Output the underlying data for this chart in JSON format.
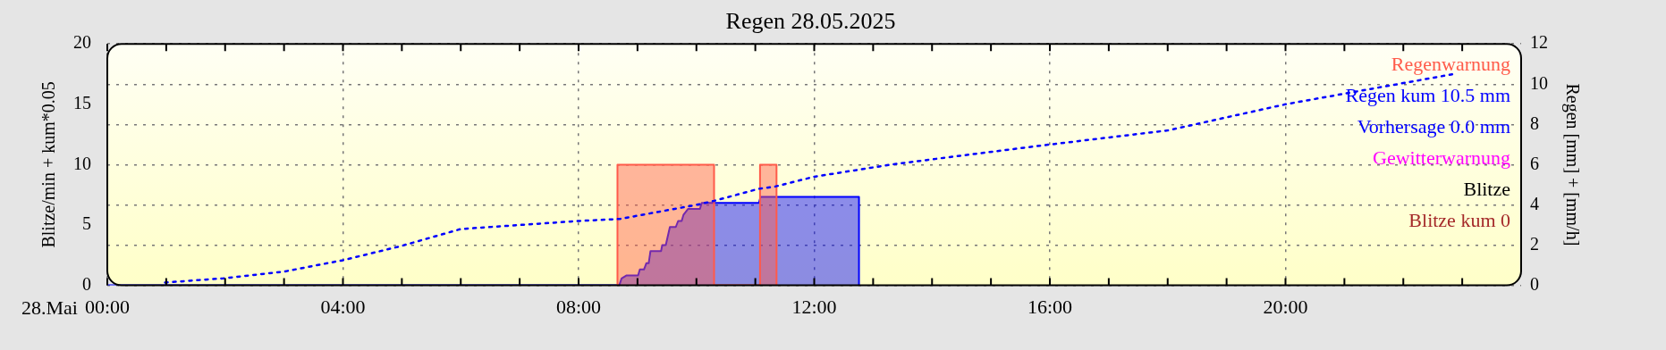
{
  "chart_data": {
    "type": "line",
    "title": "Regen 28.05.2025",
    "ylabel": "Blitze/min + kum*0.05",
    "y2label": "Regen [mm] + [mm/h]",
    "annotations": [
      "28.Mai"
    ],
    "xlim": [
      0,
      24
    ],
    "xticks": [
      {
        "value": 0,
        "label": "00:00"
      },
      {
        "value": 1,
        "label": null
      },
      {
        "value": 2,
        "label": null
      },
      {
        "value": 3,
        "label": null
      },
      {
        "value": 4,
        "label": "04:00"
      },
      {
        "value": 5,
        "label": null
      },
      {
        "value": 6,
        "label": null
      },
      {
        "value": 7,
        "label": null
      },
      {
        "value": 8,
        "label": "08:00"
      },
      {
        "value": 9,
        "label": null
      },
      {
        "value": 10,
        "label": null
      },
      {
        "value": 11,
        "label": null
      },
      {
        "value": 12,
        "label": "12:00"
      },
      {
        "value": 13,
        "label": null
      },
      {
        "value": 14,
        "label": null
      },
      {
        "value": 15,
        "label": null
      },
      {
        "value": 16,
        "label": "16:00"
      },
      {
        "value": 17,
        "label": null
      },
      {
        "value": 18,
        "label": null
      },
      {
        "value": 19,
        "label": null
      },
      {
        "value": 20,
        "label": "20:00"
      },
      {
        "value": 21,
        "label": null
      },
      {
        "value": 22,
        "label": null
      },
      {
        "value": 23,
        "label": null
      }
    ],
    "ylim": [
      0,
      20
    ],
    "yticks": [
      0,
      5,
      10,
      15,
      20
    ],
    "y2lim": [
      0,
      12
    ],
    "y2ticks": [
      0,
      2,
      4,
      6,
      8,
      10,
      12
    ],
    "grid": true,
    "legend": "top right",
    "marker": "none",
    "series": [
      {
        "name": "Regenwarnung",
        "type": "area",
        "axis": "y2",
        "color": "#ff5a4a",
        "x": [
          8.66,
          8.66,
          10.3,
          10.3,
          11.08,
          11.08,
          11.36,
          11.36
        ],
        "values": [
          0,
          6,
          6,
          0,
          0,
          6,
          6,
          0
        ]
      },
      {
        "type": "area",
        "axis": "y2",
        "color": "#0000ff",
        "x": [
          0,
          8.69,
          8.73,
          8.81,
          9.01,
          9.04,
          9.11,
          9.15,
          9.19,
          9.22,
          9.4,
          9.42,
          9.48,
          9.55,
          9.65,
          9.69,
          9.75,
          9.78,
          9.86,
          10.06,
          10.09,
          11.06,
          11.09,
          12.76,
          12.76
        ],
        "values": [
          0,
          0,
          0.34,
          0.49,
          0.49,
          0.79,
          0.79,
          1.1,
          1.1,
          1.7,
          1.7,
          2,
          2,
          2.9,
          2.9,
          3.2,
          3.2,
          3.5,
          3.8,
          3.8,
          4.1,
          4.1,
          4.4,
          4.4,
          0
        ]
      },
      {
        "name": "Regen kum 10.5 mm",
        "type": "line",
        "axis": "y2",
        "color": "#0000ff",
        "line_style": "dotted",
        "x": [
          0.98,
          1.97,
          3.01,
          4.0,
          4.98,
          6.0,
          8.0,
          8.7,
          10.0,
          10.3,
          11.06,
          11.32,
          12.0,
          13.3,
          14.1,
          16.0,
          18.0,
          20.0,
          22.85
        ],
        "values": [
          0.14,
          0.35,
          0.69,
          1.25,
          1.95,
          2.8,
          3.2,
          3.3,
          4.0,
          4.2,
          4.8,
          4.9,
          5.4,
          6.0,
          6.3,
          7.0,
          7.7,
          9.0,
          10.5
        ]
      },
      {
        "name": "Vorhersage 0.0 mm",
        "type": "line",
        "color": "#0000ff"
      },
      {
        "name": "Gewitterwarnung",
        "type": "line",
        "color": "#ff00ff"
      },
      {
        "name": "Blitze",
        "type": "line",
        "color": "#000000"
      },
      {
        "name": "Blitze kum 0",
        "type": "line",
        "color": "#a52a2a"
      }
    ]
  }
}
